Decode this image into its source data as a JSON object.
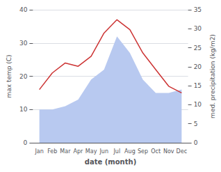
{
  "chart_data": {
    "type": "line",
    "categories": [
      "Jan",
      "Feb",
      "Mar",
      "Apr",
      "May",
      "Jun",
      "Jul",
      "Aug",
      "Sep",
      "Oct",
      "Nov",
      "Dec"
    ],
    "series": [
      {
        "type": "area",
        "color": "#b8c9f0",
        "values": [
          10,
          10,
          11,
          13,
          19,
          22,
          32,
          27,
          19,
          15,
          15,
          16
        ]
      },
      {
        "type": "line",
        "color": "#cc3333",
        "values": [
          16,
          21,
          24,
          23,
          26,
          33,
          37,
          34,
          27,
          22,
          17,
          15
        ]
      }
    ],
    "xlabel": "date (month)",
    "ylabel": "max temp (C)",
    "y2label": "med. precipitation (kg/m2)",
    "ylim": [
      0,
      40
    ],
    "yticks": [
      0,
      10,
      20,
      30,
      40
    ],
    "y2lim": [
      0,
      35
    ],
    "y2ticks": [
      0,
      5,
      10,
      15,
      20,
      25,
      30,
      35
    ],
    "grid": true
  }
}
